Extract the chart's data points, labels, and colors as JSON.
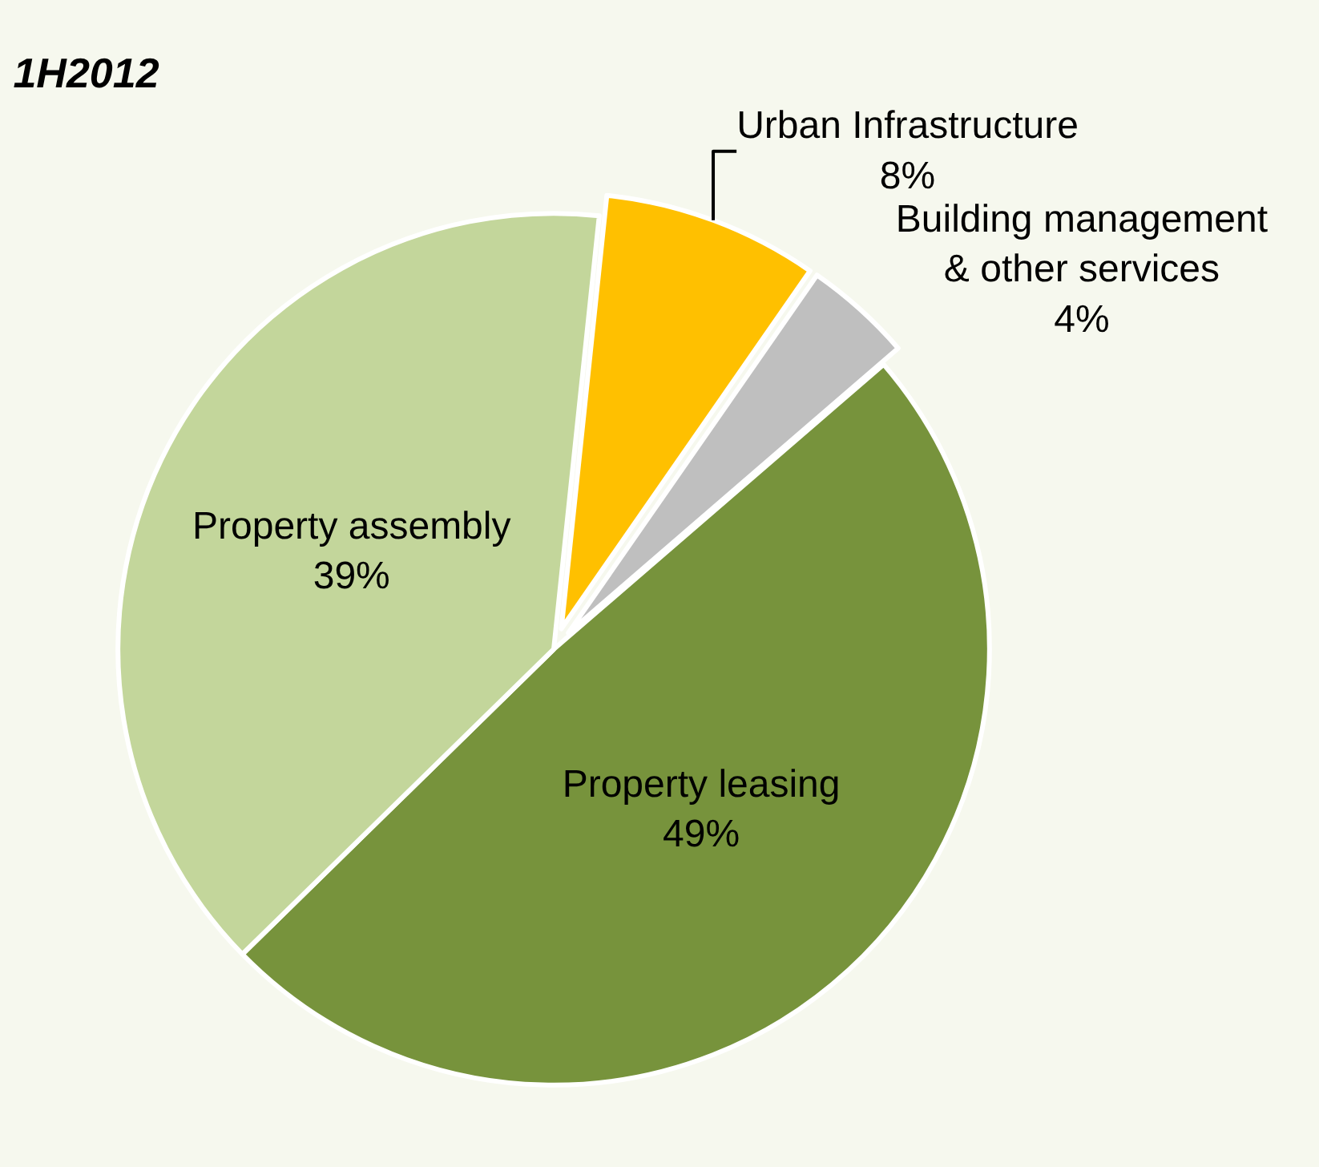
{
  "chart_data": {
    "type": "pie",
    "title": "1H2012",
    "categories": [
      "Urban Infrastructure",
      "Building management & other services",
      "Property leasing",
      "Property assembly"
    ],
    "values": [
      8,
      4,
      49,
      39
    ],
    "value_labels": [
      "8%",
      "4%",
      "49%",
      "39%"
    ],
    "colors": [
      "#ffc000",
      "#bfbfbf",
      "#77933c",
      "#c3d69b"
    ],
    "legend": false
  }
}
